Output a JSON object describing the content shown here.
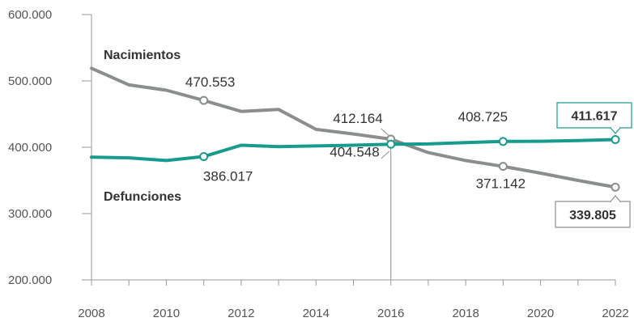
{
  "chart_data": {
    "type": "line",
    "title": "",
    "xlabel": "",
    "ylabel": "",
    "xlim": [
      2008,
      2022
    ],
    "ylim": [
      200000,
      600000
    ],
    "x_ticks": [
      2008,
      2010,
      2012,
      2014,
      2016,
      2018,
      2020,
      2022
    ],
    "x_tick_labels": [
      "2008",
      "2010",
      "2012",
      "2014",
      "2016",
      "2018",
      "2020",
      "2022"
    ],
    "y_ticks": [
      200000,
      300000,
      400000,
      500000,
      600000
    ],
    "y_tick_labels": [
      "200.000",
      "300.000",
      "400.000",
      "500.000",
      "600.000"
    ],
    "grid": false,
    "reference_line_x": 2016,
    "series": [
      {
        "name": "Nacimientos",
        "color": "#8a8e8c",
        "x": [
          2008,
          2009,
          2010,
          2011,
          2012,
          2013,
          2014,
          2015,
          2016,
          2017,
          2018,
          2019,
          2020,
          2021,
          2022
        ],
        "values": [
          519000,
          494000,
          486000,
          470553,
          454000,
          457000,
          427000,
          420000,
          412164,
          392000,
          380000,
          371142,
          361000,
          350000,
          339805
        ],
        "labeled_points": [
          {
            "x": 2011,
            "value": 470553,
            "label": "470.553",
            "boxed": false
          },
          {
            "x": 2016,
            "value": 412164,
            "label": "412.164",
            "boxed": false
          },
          {
            "x": 2019,
            "value": 371142,
            "label": "371.142",
            "boxed": false
          },
          {
            "x": 2022,
            "value": 339805,
            "label": "339.805",
            "boxed": true
          }
        ]
      },
      {
        "name": "Defunciones",
        "color": "#179b8c",
        "x": [
          2008,
          2009,
          2010,
          2011,
          2012,
          2013,
          2014,
          2015,
          2016,
          2017,
          2018,
          2019,
          2020,
          2021,
          2022
        ],
        "values": [
          385000,
          384000,
          380000,
          386017,
          403000,
          401000,
          402000,
          403000,
          404548,
          405000,
          407000,
          408725,
          409000,
          410000,
          411617
        ],
        "labeled_points": [
          {
            "x": 2011,
            "value": 386017,
            "label": "386.017",
            "boxed": false
          },
          {
            "x": 2016,
            "value": 404548,
            "label": "404.548",
            "boxed": false
          },
          {
            "x": 2019,
            "value": 408725,
            "label": "408.725",
            "boxed": false
          },
          {
            "x": 2022,
            "value": 411617,
            "label": "411.617",
            "boxed": true
          }
        ]
      }
    ]
  }
}
